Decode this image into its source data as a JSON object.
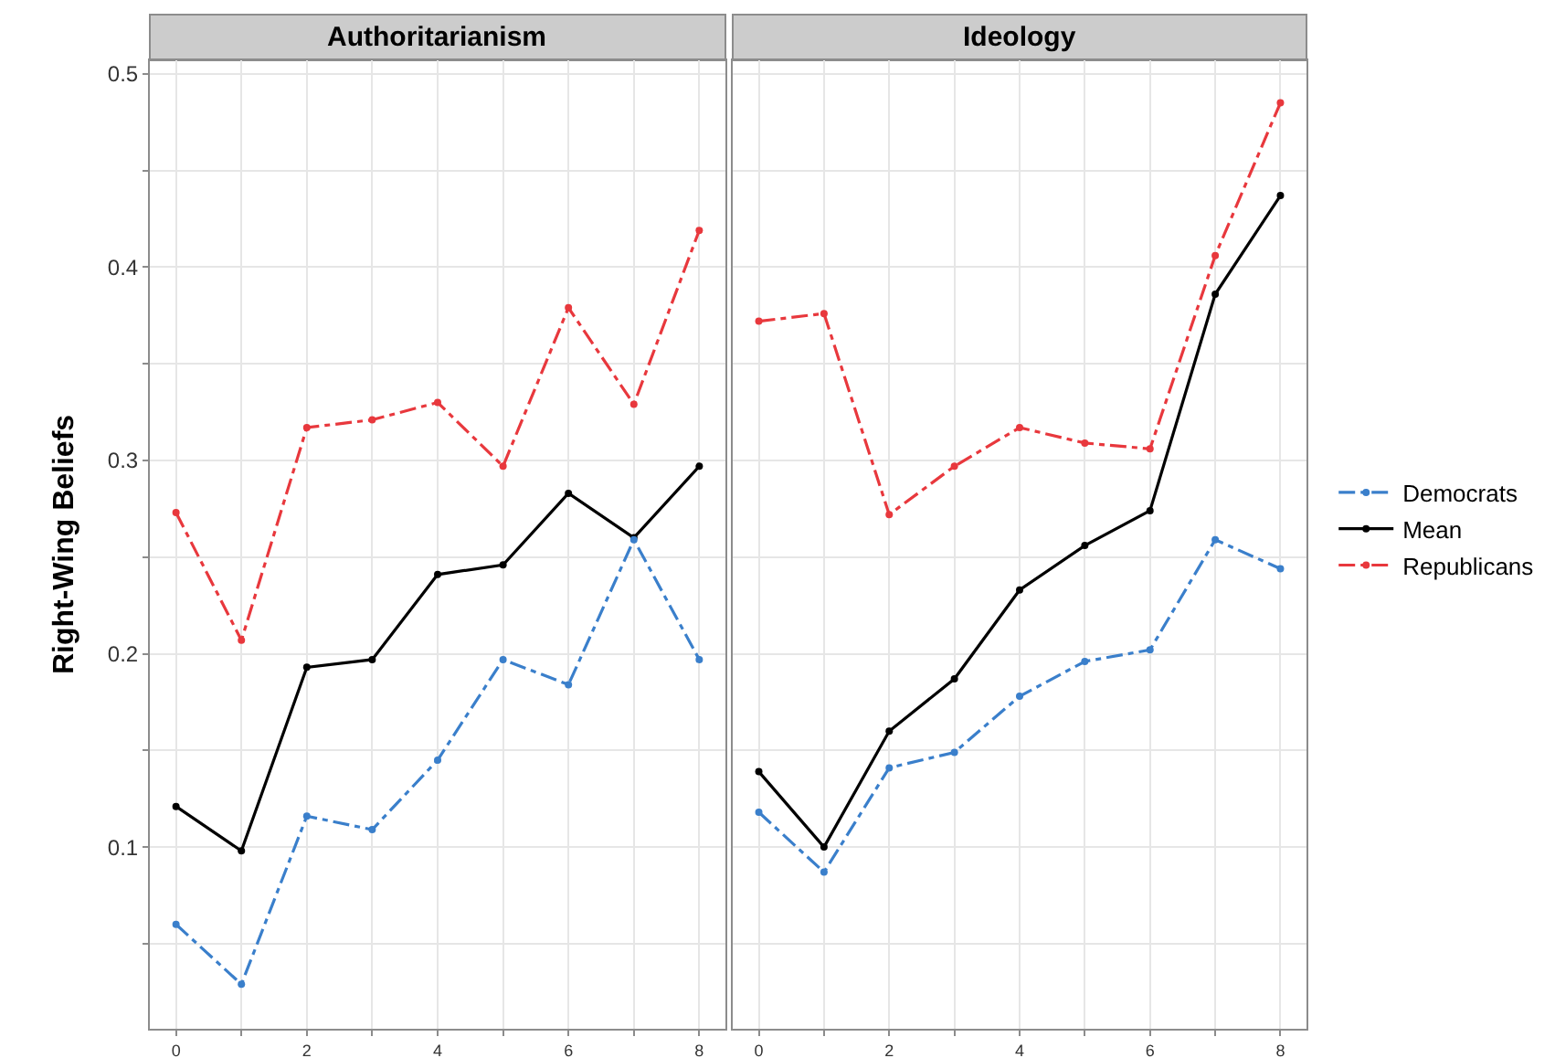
{
  "chart_data": [
    {
      "type": "line",
      "title": "Authoritarianism",
      "ylabel": "Right-Wing Beliefs",
      "x": [
        0,
        1,
        2,
        3,
        4,
        5,
        6,
        7,
        8
      ],
      "series": [
        {
          "name": "Democrats",
          "color": "#3a7fcb",
          "line_style": "dashed",
          "values": [
            0.06,
            0.029,
            0.116,
            0.109,
            0.145,
            0.197,
            0.184,
            0.259,
            0.197
          ]
        },
        {
          "name": "Mean",
          "color": "#000000",
          "line_style": "solid",
          "values": [
            0.121,
            0.098,
            0.193,
            0.197,
            0.241,
            0.246,
            0.283,
            0.26,
            0.297
          ]
        },
        {
          "name": "Republicans",
          "color": "#e8383d",
          "line_style": "dashed",
          "values": [
            0.273,
            0.207,
            0.317,
            0.321,
            0.33,
            0.297,
            0.379,
            0.329,
            0.419
          ]
        }
      ],
      "xlim": [
        -0.4,
        8.4
      ],
      "ylim": [
        0.006,
        0.507
      ],
      "xticks": [
        0,
        {
          "value": 1,
          "label": null
        },
        2,
        {
          "value": 3,
          "label": null
        },
        4,
        {
          "value": 5,
          "label": null
        },
        6,
        {
          "value": 7,
          "label": null
        },
        8
      ],
      "yticks": [
        {
          "value": 0.05,
          "label": null
        },
        0.1,
        {
          "value": 0.15,
          "label": null
        },
        0.2,
        {
          "value": 0.25,
          "label": null
        },
        0.3,
        {
          "value": 0.35,
          "label": null
        },
        0.4,
        {
          "value": 0.45,
          "label": null
        },
        0.5
      ],
      "grid": true,
      "marker": "circle",
      "legend": "right"
    },
    {
      "type": "line",
      "title": "Ideology",
      "x": [
        0,
        1,
        2,
        3,
        4,
        5,
        6,
        7,
        8
      ],
      "series": [
        {
          "name": "Democrats",
          "color": "#3a7fcb",
          "line_style": "dashed",
          "values": [
            0.118,
            0.087,
            0.141,
            0.149,
            0.178,
            0.196,
            0.202,
            0.259,
            0.244
          ]
        },
        {
          "name": "Mean",
          "color": "#000000",
          "line_style": "solid",
          "values": [
            0.139,
            0.1,
            0.16,
            0.187,
            0.233,
            0.256,
            0.274,
            0.386,
            0.437
          ]
        },
        {
          "name": "Republicans",
          "color": "#e8383d",
          "line_style": "dashed",
          "values": [
            0.372,
            0.376,
            0.272,
            0.297,
            0.317,
            0.309,
            0.306,
            0.406,
            0.485
          ]
        }
      ],
      "xlim": [
        -0.4,
        8.4
      ],
      "ylim": [
        0.006,
        0.507
      ],
      "xticks": [
        0,
        {
          "value": 1,
          "label": null
        },
        2,
        {
          "value": 3,
          "label": null
        },
        4,
        {
          "value": 5,
          "label": null
        },
        6,
        {
          "value": 7,
          "label": null
        },
        8
      ],
      "yticks": [
        {
          "value": 0.05,
          "label": null
        },
        0.1,
        {
          "value": 0.15,
          "label": null
        },
        0.2,
        {
          "value": 0.25,
          "label": null
        },
        0.3,
        {
          "value": 0.35,
          "label": null
        },
        0.4,
        {
          "value": 0.45,
          "label": null
        },
        0.5
      ],
      "tick_labels": "x",
      "grid": true,
      "marker": "circle",
      "legend": "right"
    }
  ]
}
